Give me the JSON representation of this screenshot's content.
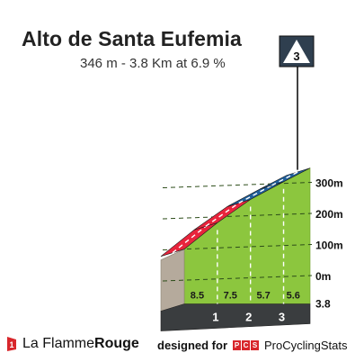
{
  "header": {
    "title": "Alto de Santa Eufemia",
    "subtitle": "346 m - 3.8 Km at 6.9 %"
  },
  "chart_data": {
    "type": "area",
    "title": "Alto de Santa Eufemia",
    "subtitle": "346 m - 3.8 Km at 6.9 %",
    "category_badge": "3",
    "xlim": [
      0,
      3.8
    ],
    "ylim": [
      -100,
      346
    ],
    "y_ticks": [
      "0m",
      "100m",
      "200m",
      "300m"
    ],
    "y_tick_values": [
      0,
      100,
      200,
      300
    ],
    "x_km_markers": [
      "1",
      "2",
      "3"
    ],
    "x_km_marker_values": [
      1,
      2,
      3
    ],
    "end_distance_label": "3.8",
    "segments": [
      {
        "from_km": 0,
        "to_km": 1,
        "gradient": 8.5,
        "label": "8.5"
      },
      {
        "from_km": 1,
        "to_km": 2,
        "gradient": 7.5,
        "label": "7.5"
      },
      {
        "from_km": 2,
        "to_km": 3,
        "gradient": 5.7,
        "label": "5.7"
      },
      {
        "from_km": 3,
        "to_km": 3.8,
        "gradient": 5.6,
        "label": "5.6"
      }
    ],
    "elevation_profile": [
      {
        "km": 0,
        "alt": 85
      },
      {
        "km": 1,
        "alt": 170
      },
      {
        "km": 2,
        "alt": 245
      },
      {
        "km": 3,
        "alt": 302
      },
      {
        "km": 3.8,
        "alt": 346
      }
    ],
    "road_band_colors": [
      "#e8243c",
      "#e8243c",
      "#1f5f9b",
      "#1f5f9b"
    ],
    "grade_fill_color": "#8cc63e",
    "grid": true
  },
  "footer": {
    "brand_part1": "La Flamme",
    "brand_part2": "Rouge",
    "designed_for": "designed for",
    "pcs_letters": [
      "P",
      "C",
      "S"
    ],
    "pcs_name": "ProCyclingStats"
  }
}
